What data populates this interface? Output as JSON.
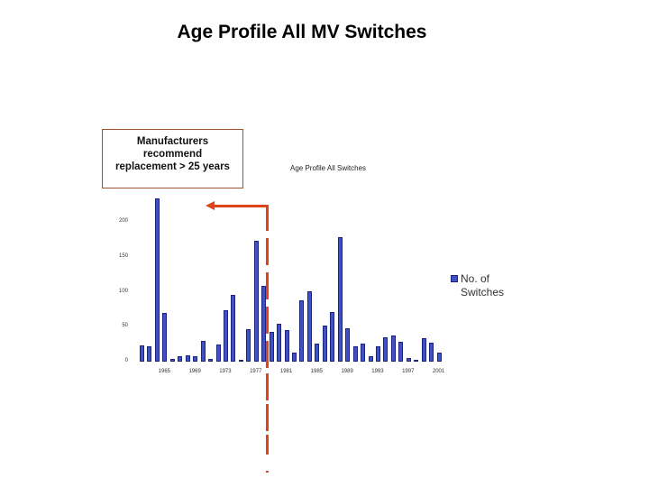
{
  "page": {
    "title": "Age Profile All MV Switches",
    "callout_lines": [
      "Manufacturers",
      "recommend",
      "replacement > 25 years"
    ],
    "annotation_color": "#e0441c",
    "bar_color": "#3f51c4"
  },
  "chart_data": {
    "type": "bar",
    "title": "Age Profile All Switches",
    "xlabel": "",
    "ylabel": "",
    "ylim": [
      0,
      240
    ],
    "yticks": [
      0,
      50,
      100,
      150,
      200
    ],
    "grid": false,
    "legend_position": "right",
    "categories": [
      "1962",
      "1963",
      "1964",
      "1965",
      "1966",
      "1967",
      "1968",
      "1969",
      "1970",
      "1971",
      "1972",
      "1973",
      "1974",
      "1975",
      "1976",
      "1977",
      "1978",
      "1979",
      "1980",
      "1981",
      "1982",
      "1983",
      "1984",
      "1985",
      "1986",
      "1987",
      "1988",
      "1989",
      "1990",
      "1991",
      "1992",
      "1993",
      "1994",
      "1995",
      "1996",
      "1997",
      "1998",
      "1999",
      "2000",
      "2001"
    ],
    "xtick_labels": [
      "1965",
      "1969",
      "1973",
      "1977",
      "1981",
      "1985",
      "1989",
      "1993",
      "1997",
      "2001"
    ],
    "series": [
      {
        "name": "No. of Switches",
        "values": [
          23,
          22,
          233,
          70,
          4,
          8,
          9,
          8,
          30,
          4,
          25,
          74,
          95,
          2,
          47,
          173,
          108,
          43,
          54,
          45,
          13,
          88,
          101,
          26,
          52,
          71,
          178,
          48,
          22,
          26,
          8,
          22,
          35,
          37,
          28,
          5,
          3,
          34,
          27,
          13
        ]
      }
    ],
    "annotations": [
      {
        "type": "vertical-dashed-line",
        "position": "between 1977 and 1978",
        "meaning": "25 years threshold"
      },
      {
        "type": "arrow",
        "direction": "left",
        "text": "Manufacturers recommend replacement > 25 years"
      }
    ]
  },
  "legend": {
    "label_line1": "No. of",
    "label_line2": "Switches"
  }
}
